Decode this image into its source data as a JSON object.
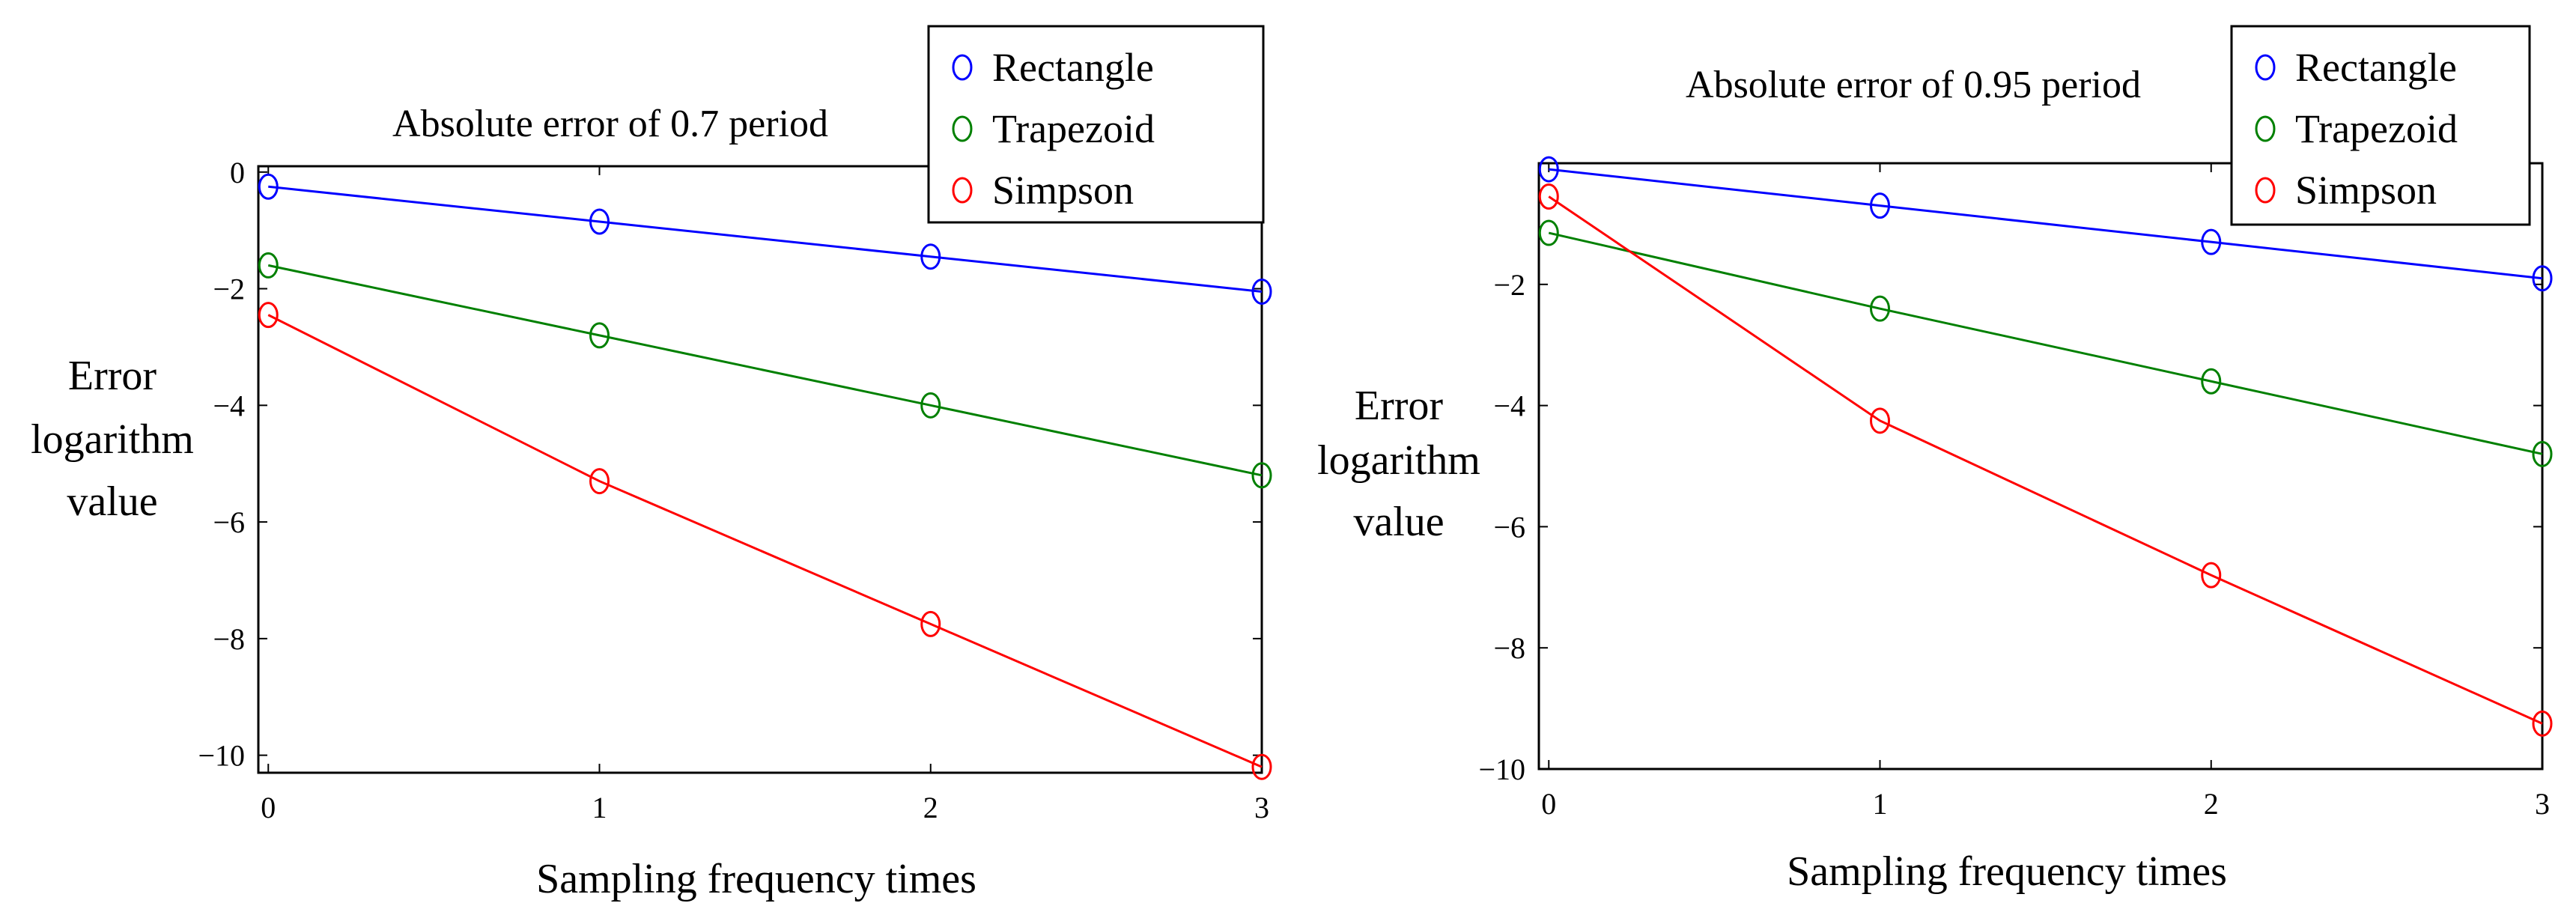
{
  "chart_data": [
    {
      "type": "line",
      "title": "Absolute error of 0.7 period",
      "xlabel": "Sampling frequency times",
      "ylabel": [
        "Error",
        "logarithm",
        "value"
      ],
      "x": [
        0,
        1,
        2,
        3
      ],
      "xlim": [
        -0.03,
        3.0
      ],
      "ylim": [
        -10.3,
        0.1
      ],
      "xticks": [
        0,
        1,
        2,
        3
      ],
      "yticks": [
        0,
        -2,
        -4,
        -6,
        -8,
        -10
      ],
      "yticklabels": [
        "0",
        "−2",
        "−4",
        "−6",
        "−8",
        "−10"
      ],
      "grid": false,
      "legend_position": "top-right",
      "series": [
        {
          "name": "Rectangle",
          "color": "#0000ff",
          "marker": "circle",
          "values": [
            -0.25,
            -0.85,
            -1.45,
            -2.05
          ]
        },
        {
          "name": "Trapezoid",
          "color": "#008000",
          "marker": "circle",
          "values": [
            -1.6,
            -2.8,
            -4.0,
            -5.2
          ]
        },
        {
          "name": "Simpson",
          "color": "#ff0000",
          "marker": "circle",
          "values": [
            -2.45,
            -5.3,
            -7.75,
            -10.2
          ]
        }
      ]
    },
    {
      "type": "line",
      "title": "Absolute error of 0.95 period",
      "xlabel": "Sampling frequency times",
      "ylabel": [
        "Error",
        "logarithm",
        "value"
      ],
      "x": [
        0,
        1,
        2,
        3
      ],
      "xlim": [
        -0.03,
        3.0
      ],
      "ylim": [
        -10.0,
        0.0
      ],
      "xticks": [
        0,
        1,
        2,
        3
      ],
      "yticks": [
        -2,
        -4,
        -6,
        -8,
        -10
      ],
      "yticklabels": [
        "−2",
        "−4",
        "−6",
        "−8",
        "−10"
      ],
      "grid": false,
      "legend_position": "top-right",
      "series": [
        {
          "name": "Rectangle",
          "color": "#0000ff",
          "marker": "circle",
          "values": [
            -0.1,
            -0.7,
            -1.3,
            -1.9
          ]
        },
        {
          "name": "Trapezoid",
          "color": "#008000",
          "marker": "circle",
          "values": [
            -1.15,
            -2.4,
            -3.6,
            -4.8
          ]
        },
        {
          "name": "Simpson",
          "color": "#ff0000",
          "marker": "circle",
          "values": [
            -0.55,
            -4.25,
            -6.8,
            -9.25
          ]
        }
      ]
    }
  ]
}
